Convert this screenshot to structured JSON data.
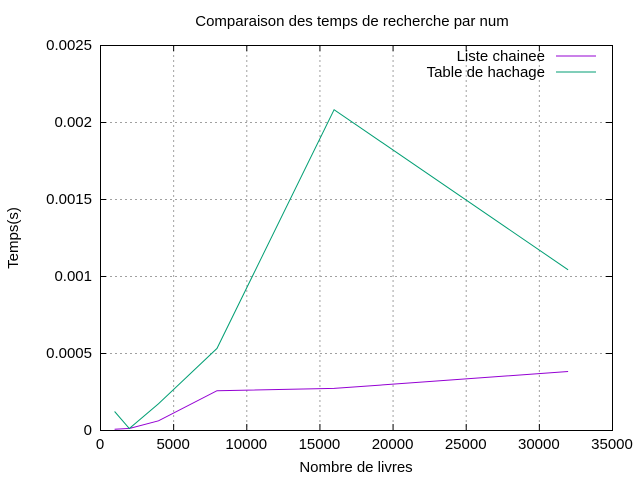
{
  "chart_data": {
    "type": "line",
    "title": "Comparaison des temps de recherche par num",
    "xlabel": "Nombre de livres",
    "ylabel": "Temps(s)",
    "xlim": [
      0,
      35000
    ],
    "ylim": [
      0,
      0.0025
    ],
    "x_ticks": [
      "0",
      "5000",
      "10000",
      "15000",
      "20000",
      "25000",
      "30000",
      "35000"
    ],
    "y_ticks": [
      "0",
      "0.0005",
      "0.001",
      "0.0015",
      "0.002",
      "0.0025"
    ],
    "grid": true,
    "legend_position": "top-right",
    "series": [
      {
        "name": "Liste chainee",
        "color": "#9400d3",
        "x": [
          1000,
          2000,
          4000,
          8000,
          16000,
          32000
        ],
        "values": [
          5e-06,
          1e-05,
          6e-05,
          0.000255,
          0.00027,
          0.00038
        ]
      },
      {
        "name": "Table de hachage",
        "color": "#009e73",
        "x": [
          1000,
          2000,
          4000,
          8000,
          16000,
          32000
        ],
        "values": [
          0.00012,
          1e-05,
          0.00017,
          0.00053,
          0.00208,
          0.00104
        ]
      }
    ]
  }
}
